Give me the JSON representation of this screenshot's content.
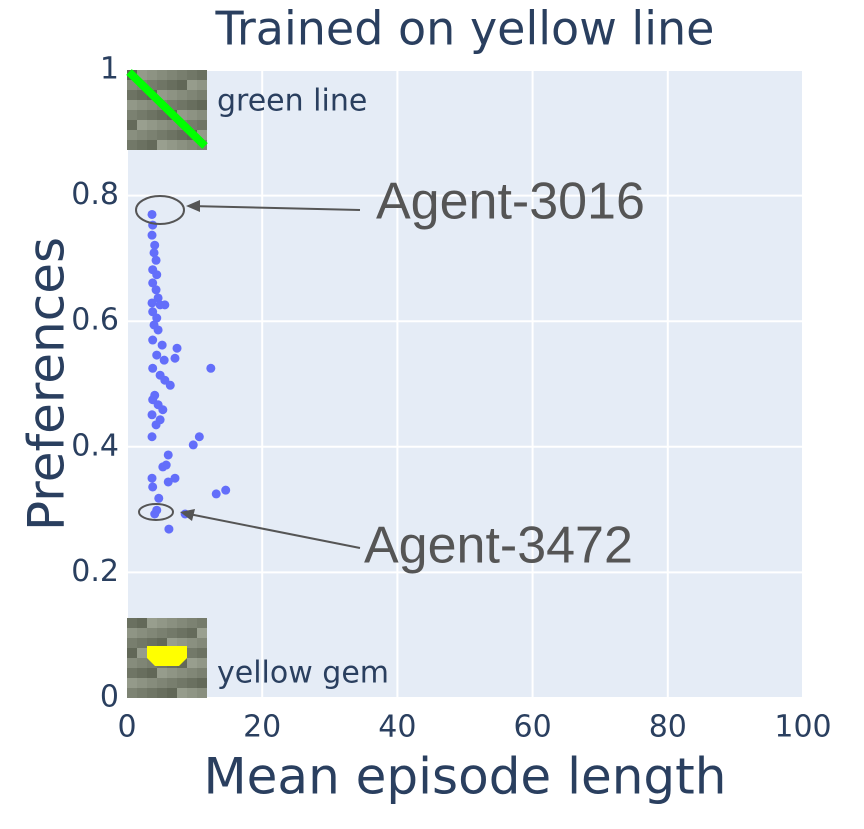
{
  "chart_data": {
    "type": "scatter",
    "title": "Trained on yellow line",
    "xlabel": "Mean episode length",
    "ylabel": "Preferences",
    "color": "#636efa",
    "x": [
      3.7,
      3.8,
      3.7,
      4.1,
      4.0,
      4.3,
      3.8,
      4.4,
      3.8,
      4.3,
      4.6,
      3.7,
      4.9,
      5.6,
      3.8,
      4.4,
      4.0,
      4.6,
      3.8,
      5.2,
      7.4,
      4.4,
      5.5,
      7.1,
      3.8,
      12.4,
      4.9,
      5.6,
      6.4,
      4.1,
      3.8,
      4.6,
      5.3,
      3.7,
      4.9,
      4.3,
      3.7,
      10.7,
      9.8,
      6.1,
      5.8,
      5.3,
      3.7,
      7.1,
      6.1,
      3.8,
      14.6,
      13.2,
      4.7,
      4.4,
      4.1,
      8.6,
      6.2
    ],
    "y": [
      0.77,
      0.753,
      0.737,
      0.721,
      0.709,
      0.697,
      0.682,
      0.674,
      0.661,
      0.65,
      0.637,
      0.629,
      0.626,
      0.626,
      0.615,
      0.605,
      0.594,
      0.586,
      0.57,
      0.562,
      0.557,
      0.546,
      0.538,
      0.541,
      0.525,
      0.525,
      0.514,
      0.506,
      0.498,
      0.482,
      0.475,
      0.467,
      0.459,
      0.451,
      0.443,
      0.435,
      0.416,
      0.416,
      0.403,
      0.387,
      0.371,
      0.368,
      0.35,
      0.35,
      0.344,
      0.336,
      0.331,
      0.325,
      0.318,
      0.299,
      0.293,
      0.293,
      0.269
    ],
    "xlim": [
      0,
      100
    ],
    "ylim": [
      0,
      1
    ],
    "xticks": [
      0,
      20,
      40,
      60,
      80,
      100
    ],
    "yticks": [
      0,
      0.2,
      0.4,
      0.6,
      0.8,
      1
    ],
    "grid": true,
    "annotations": [
      "Agent-3016",
      "Agent-3472"
    ],
    "image_labels": [
      "green line",
      "yellow gem"
    ]
  }
}
